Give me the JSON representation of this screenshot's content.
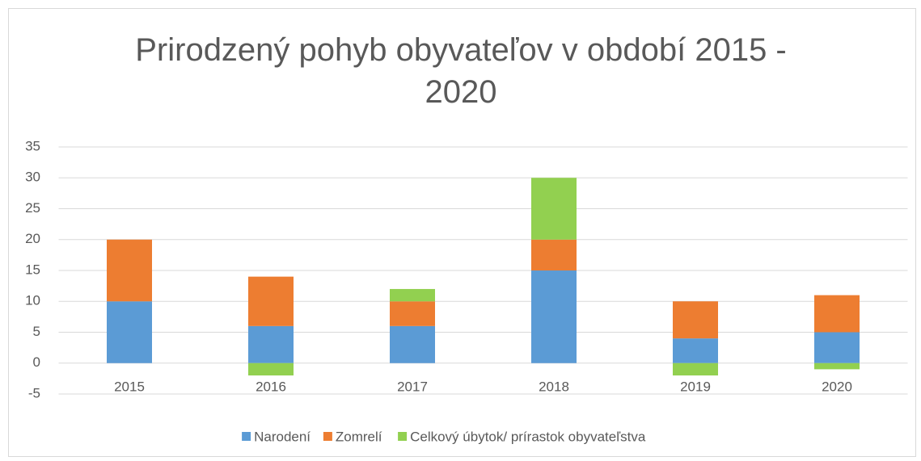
{
  "chart_data": {
    "type": "stacked_bar",
    "title": "Prirodzený pohyb obyvateľov v období 2015 - 2020",
    "categories": [
      "2015",
      "2016",
      "2017",
      "2018",
      "2019",
      "2020"
    ],
    "series": [
      {
        "name": "Narodení",
        "color": "#5b9bd5",
        "values": [
          10,
          6,
          6,
          15,
          4,
          5
        ]
      },
      {
        "name": "Zomrelí",
        "color": "#ed7d31",
        "values": [
          10,
          8,
          4,
          5,
          6,
          6
        ]
      },
      {
        "name": "Celkový úbytok/ prírastok obyvateľstva",
        "color": "#92d050",
        "values": [
          0,
          -2,
          2,
          10,
          -2,
          -1
        ]
      }
    ],
    "ylim": [
      -5,
      35
    ],
    "yticks": [
      -5,
      0,
      5,
      10,
      15,
      20,
      25,
      30,
      35
    ],
    "grid": true,
    "legend": "bottom"
  }
}
